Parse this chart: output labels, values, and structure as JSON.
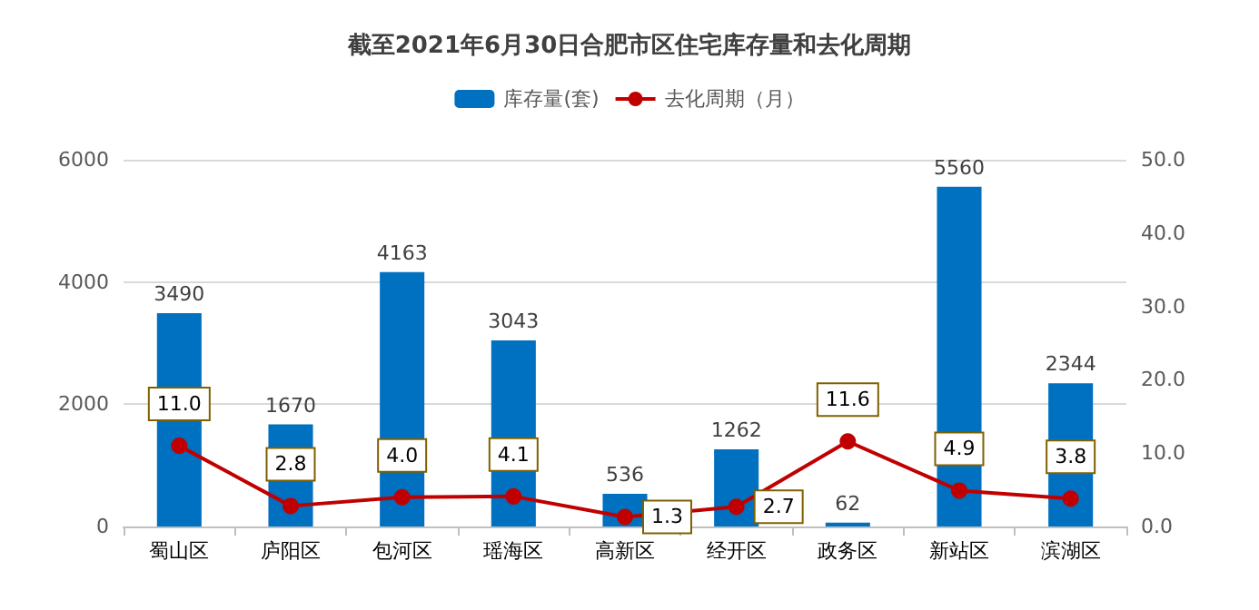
{
  "chart_data": {
    "type": "bar",
    "title": "截至2021年6月30日合肥市区住宅库存量和去化周期",
    "categories": [
      "蜀山区",
      "庐阳区",
      "包河区",
      "瑶海区",
      "高新区",
      "经开区",
      "政务区",
      "新站区",
      "滨湖区"
    ],
    "series": [
      {
        "name": "库存量(套)",
        "color": "#0070c0",
        "values": [
          3490,
          1670,
          4163,
          3043,
          536,
          1262,
          62,
          5560,
          2344
        ],
        "value_labels": [
          "3490",
          "1670",
          "4163",
          "3043",
          "536",
          "1262",
          "62",
          "5560",
          "2344"
        ]
      },
      {
        "name": "去化周期（月）",
        "type": "line",
        "axis": "y2",
        "color": "#c00000",
        "values": [
          11.0,
          2.8,
          4.0,
          4.1,
          1.3,
          2.7,
          11.6,
          4.9,
          3.8
        ],
        "value_labels": [
          "11.0",
          "2.8",
          "4.0",
          "4.1",
          "1.3",
          "2.7",
          "11.6",
          "4.9",
          "3.8"
        ]
      }
    ],
    "ylim": [
      0,
      6000
    ],
    "yticks": [
      0,
      2000,
      4000,
      6000
    ],
    "y2lim": [
      0,
      50
    ],
    "y2ticks": [
      {
        "value": 0,
        "label": "0.0"
      },
      {
        "value": 10,
        "label": "10.0"
      },
      {
        "value": 20,
        "label": "20.0"
      },
      {
        "value": 30,
        "label": "30.0"
      },
      {
        "value": 40,
        "label": "40.0"
      },
      {
        "value": 50,
        "label": "50.0"
      }
    ],
    "grid": "y",
    "legend": "top",
    "marker": "circle"
  }
}
